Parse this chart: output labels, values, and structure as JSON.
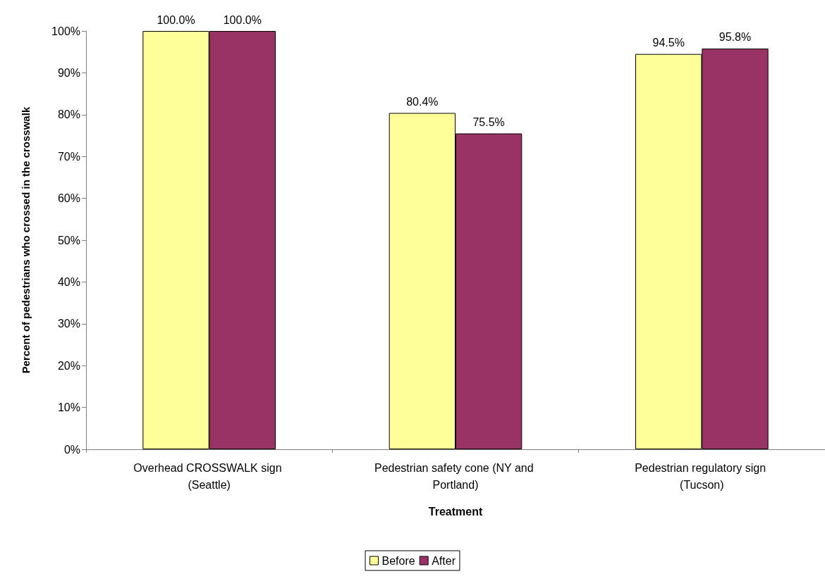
{
  "chart_data": {
    "type": "bar",
    "xlabel": "Treatment",
    "ylabel": "Percent of pedestrians who crossed in the crosswalk",
    "categories": [
      "Overhead CROSSWALK sign (Seattle)",
      "Pedestrian safety cone (NY and Portland)",
      "Pedestrian regulatory sign (Tucson)"
    ],
    "series": [
      {
        "name": "Before",
        "color": "#ffff99",
        "values": [
          100,
          80.4,
          94.5
        ],
        "value_labels": [
          "100.0%",
          "80.4%",
          "94.5%"
        ]
      },
      {
        "name": "After",
        "color": "#993366",
        "values": [
          100,
          75.5,
          95.8
        ],
        "value_labels": [
          "100.0%",
          "75.5%",
          "95.8%"
        ]
      }
    ],
    "ylim": [
      0,
      100
    ],
    "yticks": [
      {
        "value": 0,
        "label": "0%"
      },
      {
        "value": 10,
        "label": "10%"
      },
      {
        "value": 20,
        "label": "20%"
      },
      {
        "value": 30,
        "label": "30%"
      },
      {
        "value": 40,
        "label": "40%"
      },
      {
        "value": 50,
        "label": "50%"
      },
      {
        "value": 60,
        "label": "60%"
      },
      {
        "value": 70,
        "label": "70%"
      },
      {
        "value": 80,
        "label": "80%"
      },
      {
        "value": 90,
        "label": "90%"
      },
      {
        "value": 100,
        "label": "100%"
      }
    ],
    "grid": false,
    "legend": "bottom"
  }
}
